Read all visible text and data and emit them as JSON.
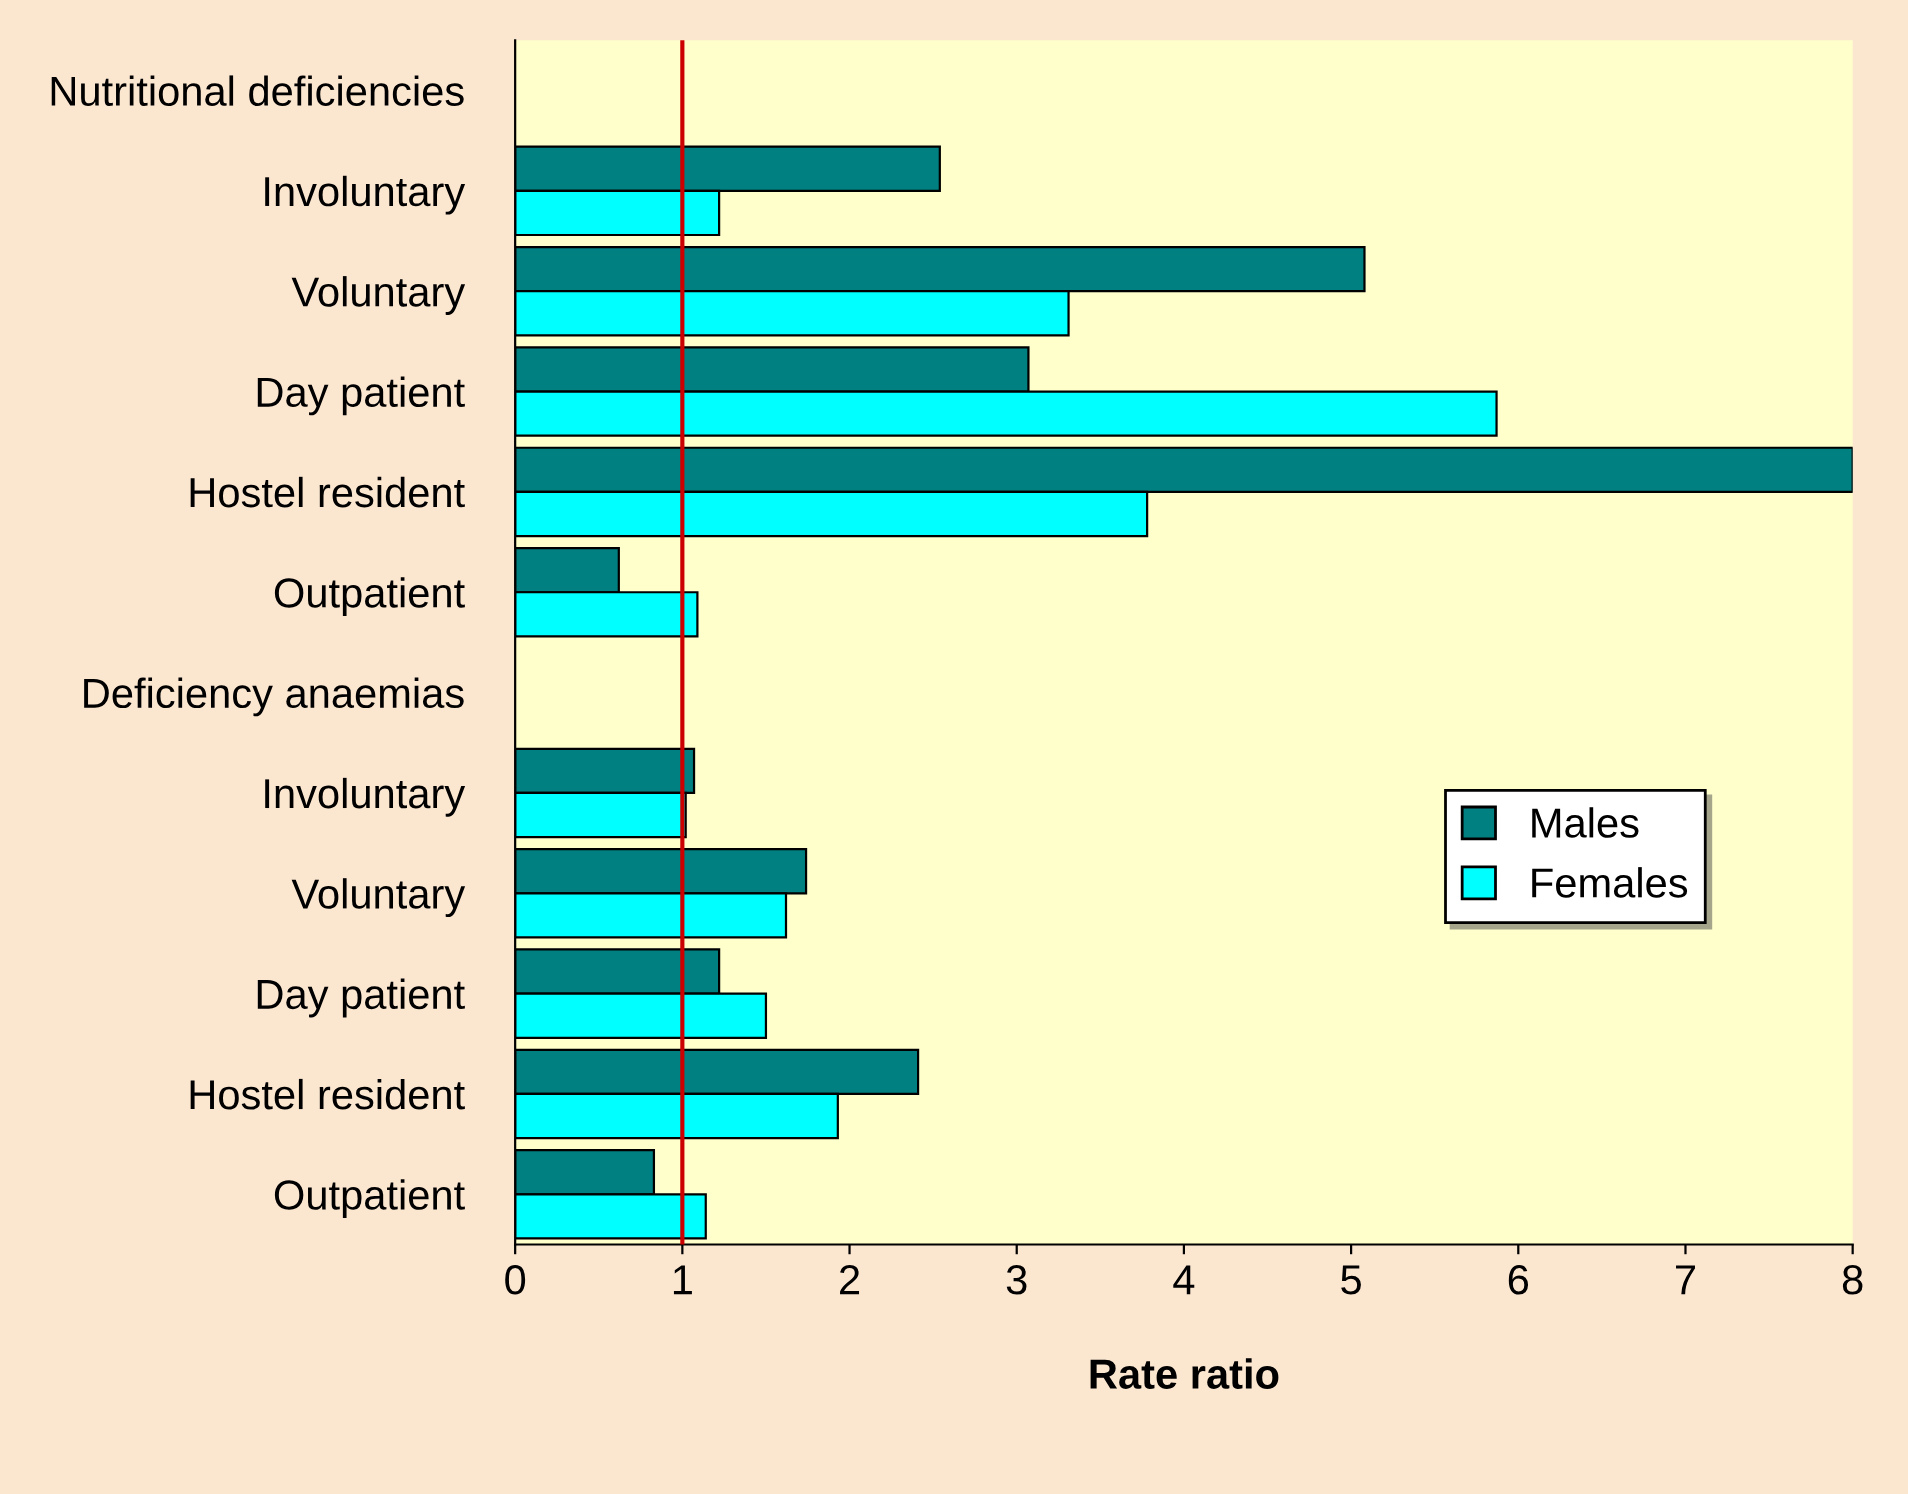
{
  "chart_data": {
    "type": "bar",
    "orientation": "horizontal",
    "xlabel": "Rate ratio",
    "categories": [
      "Nutritional deficiencies",
      "Involuntary",
      "Voluntary",
      "Day patient",
      "Hostel resident",
      "Outpatient",
      "Deficiency anaemias",
      "Involuntary",
      "Voluntary",
      "Day patient",
      "Hostel resident",
      "Outpatient"
    ],
    "series": [
      {
        "name": "Males",
        "color": "#008080",
        "values": [
          null,
          2.54,
          5.08,
          3.07,
          8,
          0.62,
          null,
          1.07,
          1.74,
          1.22,
          2.41,
          0.83
        ]
      },
      {
        "name": "Females",
        "color": "#00ffff",
        "values": [
          null,
          1.22,
          3.31,
          5.87,
          3.78,
          1.09,
          null,
          1.02,
          1.62,
          1.5,
          1.93,
          1.14
        ]
      }
    ],
    "xlim": [
      0,
      8
    ],
    "xticks": [
      0,
      1,
      2,
      3,
      4,
      5,
      6,
      7,
      8
    ],
    "ref_lines": [
      {
        "axis": "x",
        "value": 1,
        "color": "#cc0000"
      }
    ],
    "grid": false,
    "legend": "right"
  }
}
